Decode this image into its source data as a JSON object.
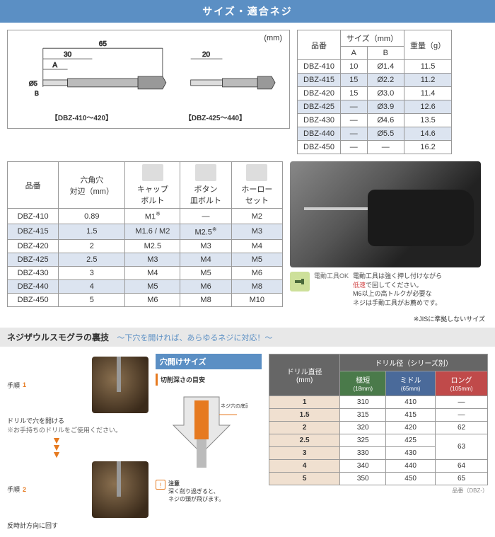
{
  "header": "サイズ・適合ネジ",
  "diagram": {
    "unit": "(mm)",
    "dim65": "65",
    "dim30": "30",
    "dim20": "20",
    "dimA": "A",
    "dimB": "B",
    "dim5": "Ø5",
    "label1": "【DBZ-410～420】",
    "label2": "【DBZ-425～440】"
  },
  "table1": {
    "h_part": "品番",
    "h_size": "サイズ（mm）",
    "h_a": "A",
    "h_b": "B",
    "h_weight": "重量（g）",
    "rows": [
      {
        "p": "DBZ-410",
        "a": "10",
        "b": "Ø1.4",
        "w": "11.5",
        "alt": false
      },
      {
        "p": "DBZ-415",
        "a": "15",
        "b": "Ø2.2",
        "w": "11.2",
        "alt": true
      },
      {
        "p": "DBZ-420",
        "a": "15",
        "b": "Ø3.0",
        "w": "11.4",
        "alt": false
      },
      {
        "p": "DBZ-425",
        "a": "—",
        "b": "Ø3.9",
        "w": "12.6",
        "alt": true
      },
      {
        "p": "DBZ-430",
        "a": "—",
        "b": "Ø4.6",
        "w": "13.5",
        "alt": false
      },
      {
        "p": "DBZ-440",
        "a": "—",
        "b": "Ø5.5",
        "w": "14.6",
        "alt": true
      },
      {
        "p": "DBZ-450",
        "a": "—",
        "b": "—",
        "w": "16.2",
        "alt": false
      }
    ]
  },
  "table2": {
    "h_part": "品番",
    "h_hex": "六角穴\n対辺（mm）",
    "h_cap": "キャップ\nボルト",
    "h_btn": "ボタン\n皿ボルト",
    "h_hol": "ホーロー\nセット",
    "rows": [
      {
        "p": "DBZ-410",
        "hex": "0.89",
        "cap": "M1",
        "cap_ast": true,
        "btn": "—",
        "hol": "M2",
        "alt": false
      },
      {
        "p": "DBZ-415",
        "hex": "1.5",
        "cap": "M1.6 / M2",
        "btn": "M2.5",
        "btn_ast": true,
        "hol": "M3",
        "alt": true
      },
      {
        "p": "DBZ-420",
        "hex": "2",
        "cap": "M2.5",
        "btn": "M3",
        "hol": "M4",
        "alt": false
      },
      {
        "p": "DBZ-425",
        "hex": "2.5",
        "cap": "M3",
        "btn": "M4",
        "hol": "M5",
        "alt": true
      },
      {
        "p": "DBZ-430",
        "hex": "3",
        "cap": "M4",
        "btn": "M5",
        "hol": "M6",
        "alt": false
      },
      {
        "p": "DBZ-440",
        "hex": "4",
        "cap": "M5",
        "btn": "M6",
        "hol": "M8",
        "alt": true
      },
      {
        "p": "DBZ-450",
        "hex": "5",
        "cap": "M6",
        "btn": "M8",
        "hol": "M10",
        "alt": false
      }
    ],
    "footnote": "※JISに準拠しないサイズ"
  },
  "drill_note": {
    "icon_label": "電動工具OK",
    "line1": "電動工具は強く押し付けながら",
    "line2_red": "低速",
    "line2_rest": "で回してください。",
    "line3": "M6以上の高トルクが必要な",
    "line4": "ネジは手動工具がお薦めです。"
  },
  "section2": {
    "title": "ネジザウルスモグラの裏技",
    "subtitle": "～下穴を開ければ、あらゆるネジに対応！～"
  },
  "steps": {
    "s1_label": "手順",
    "s1_num": "1",
    "s1_text": "ドリルで穴を開ける",
    "s1_note": "※お手持ちのドリルをご使用ください。",
    "s2_label": "手順",
    "s2_num": "2",
    "s2_text": "反時計方向に回す"
  },
  "hole": {
    "header": "穴開けサイズ",
    "sub": "切削深さの目安",
    "callout": "ネジ穴の底面\nまで切削します",
    "warn_title": "注意",
    "warn_text": "深く削り過ぎると、\nネジの頭が飛びます。"
  },
  "table3": {
    "h_main": "ドリル径（シリーズ別）",
    "h_dia": "ドリル直径\n(mm)",
    "h_a": "極短",
    "h_a_sub": "(18mm)",
    "h_b": "ミドル",
    "h_b_sub": "(65mm)",
    "h_c": "ロング",
    "h_c_sub": "(105mm)",
    "rows": [
      {
        "d": "1",
        "a": "310",
        "b": "410",
        "c": "—"
      },
      {
        "d": "1.5",
        "a": "315",
        "b": "415",
        "c": "—"
      },
      {
        "d": "2",
        "a": "320",
        "b": "420",
        "c": "62"
      },
      {
        "d": "2.5",
        "a": "325",
        "b": "425",
        "c_rowspan": true,
        "c": "63"
      },
      {
        "d": "3",
        "a": "330",
        "b": "430"
      },
      {
        "d": "4",
        "a": "340",
        "b": "440",
        "c": "64"
      },
      {
        "d": "5",
        "a": "350",
        "b": "450",
        "c": "65"
      }
    ],
    "footer": "品番（DBZ-）"
  }
}
